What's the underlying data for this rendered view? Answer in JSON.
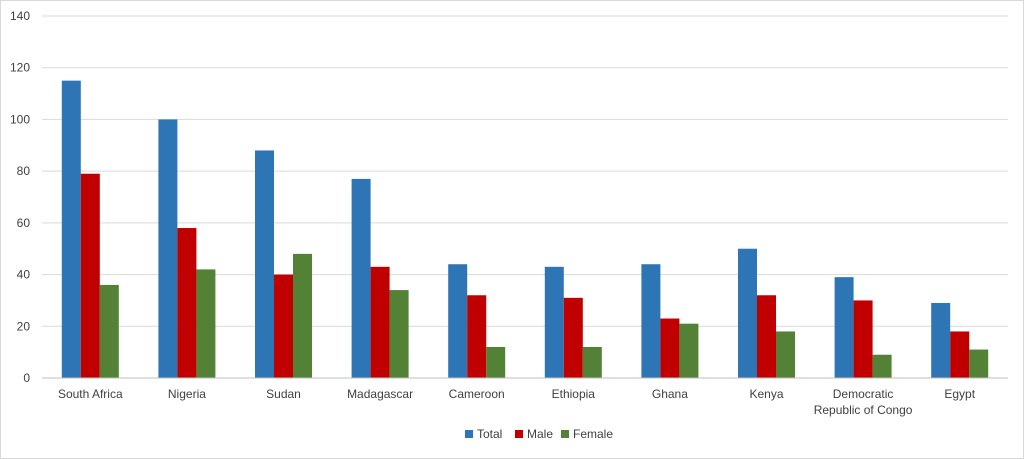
{
  "chart_data": {
    "type": "bar",
    "categories": [
      "South Africa",
      "Nigeria",
      "Sudan",
      "Madagascar",
      "Cameroon",
      "Ethiopia",
      "Ghana",
      "Kenya",
      "Democratic Republic of Congo",
      "Egypt"
    ],
    "category_lines": [
      [
        "South Africa"
      ],
      [
        "Nigeria"
      ],
      [
        "Sudan"
      ],
      [
        "Madagascar"
      ],
      [
        "Cameroon"
      ],
      [
        "Ethiopia"
      ],
      [
        "Ghana"
      ],
      [
        "Kenya"
      ],
      [
        "Democratic",
        "Republic of Congo"
      ],
      [
        "Egypt"
      ]
    ],
    "series": [
      {
        "name": "Total",
        "color": "#2E75B6",
        "values": [
          115,
          100,
          88,
          77,
          44,
          43,
          44,
          50,
          39,
          29
        ]
      },
      {
        "name": "Male",
        "color": "#C00000",
        "values": [
          79,
          58,
          40,
          43,
          32,
          31,
          23,
          32,
          30,
          18
        ]
      },
      {
        "name": "Female",
        "color": "#538135",
        "values": [
          36,
          42,
          48,
          34,
          12,
          12,
          21,
          18,
          9,
          11
        ]
      }
    ],
    "ylim": [
      0,
      140
    ],
    "yticks": [
      0,
      20,
      40,
      60,
      80,
      100,
      120,
      140
    ],
    "grid": true,
    "legend_position": "bottom-center",
    "title": "",
    "xlabel": "",
    "ylabel": ""
  }
}
